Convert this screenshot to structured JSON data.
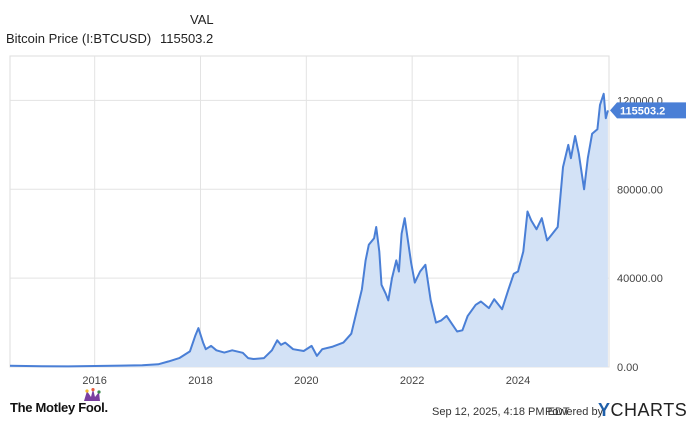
{
  "legend": {
    "column_header": "VAL",
    "series_name": "Bitcoin Price (I:BTCUSD)",
    "series_value": "115503.2"
  },
  "colors": {
    "line": "#4a7fd6",
    "fill": "#d3e2f6",
    "grid": "#e3e3e3",
    "label_bg": "#4a7fd6"
  },
  "chart_data": {
    "type": "area",
    "title": "",
    "xlabel": "",
    "ylabel": "",
    "x_range": [
      2014.4,
      2025.72
    ],
    "ylim": [
      0,
      140000
    ],
    "x_ticks": [
      {
        "value": 2016,
        "label": "2016"
      },
      {
        "value": 2018,
        "label": "2018"
      },
      {
        "value": 2020,
        "label": "2020"
      },
      {
        "value": 2022,
        "label": "2022"
      },
      {
        "value": 2024,
        "label": "2024"
      }
    ],
    "y_ticks": [
      {
        "value": 0,
        "label": "0.00"
      },
      {
        "value": 40000,
        "label": "40000.00"
      },
      {
        "value": 80000,
        "label": "80000.00"
      },
      {
        "value": 120000,
        "label": "120000.0"
      }
    ],
    "grid": true,
    "last_value_label": "115503.2",
    "series": [
      {
        "name": "Bitcoin Price (I:BTCUSD)",
        "points": [
          [
            2014.4,
            600
          ],
          [
            2014.7,
            450
          ],
          [
            2015.0,
            300
          ],
          [
            2015.5,
            250
          ],
          [
            2016.0,
            430
          ],
          [
            2016.5,
            650
          ],
          [
            2016.9,
            800
          ],
          [
            2017.2,
            1200
          ],
          [
            2017.4,
            2500
          ],
          [
            2017.6,
            4000
          ],
          [
            2017.8,
            7000
          ],
          [
            2017.9,
            14000
          ],
          [
            2017.96,
            17500
          ],
          [
            2018.05,
            11000
          ],
          [
            2018.1,
            8000
          ],
          [
            2018.2,
            9500
          ],
          [
            2018.3,
            7500
          ],
          [
            2018.45,
            6500
          ],
          [
            2018.6,
            7500
          ],
          [
            2018.8,
            6400
          ],
          [
            2018.9,
            4000
          ],
          [
            2019.0,
            3600
          ],
          [
            2019.2,
            4000
          ],
          [
            2019.35,
            7500
          ],
          [
            2019.45,
            12000
          ],
          [
            2019.52,
            10000
          ],
          [
            2019.6,
            11000
          ],
          [
            2019.75,
            8000
          ],
          [
            2019.95,
            7200
          ],
          [
            2020.1,
            9500
          ],
          [
            2020.2,
            5000
          ],
          [
            2020.3,
            8000
          ],
          [
            2020.5,
            9200
          ],
          [
            2020.7,
            11000
          ],
          [
            2020.85,
            15000
          ],
          [
            2020.95,
            25000
          ],
          [
            2021.05,
            35000
          ],
          [
            2021.12,
            48000
          ],
          [
            2021.18,
            55000
          ],
          [
            2021.28,
            58000
          ],
          [
            2021.32,
            63000
          ],
          [
            2021.38,
            52000
          ],
          [
            2021.42,
            37000
          ],
          [
            2021.5,
            33000
          ],
          [
            2021.55,
            30000
          ],
          [
            2021.62,
            40000
          ],
          [
            2021.7,
            48000
          ],
          [
            2021.75,
            43000
          ],
          [
            2021.8,
            60000
          ],
          [
            2021.86,
            67000
          ],
          [
            2021.92,
            57000
          ],
          [
            2021.98,
            47000
          ],
          [
            2022.05,
            38000
          ],
          [
            2022.15,
            43000
          ],
          [
            2022.25,
            46000
          ],
          [
            2022.35,
            30000
          ],
          [
            2022.45,
            20000
          ],
          [
            2022.55,
            21000
          ],
          [
            2022.65,
            23000
          ],
          [
            2022.75,
            19500
          ],
          [
            2022.85,
            16000
          ],
          [
            2022.95,
            16500
          ],
          [
            2023.05,
            23000
          ],
          [
            2023.2,
            28000
          ],
          [
            2023.3,
            29500
          ],
          [
            2023.45,
            26500
          ],
          [
            2023.55,
            30500
          ],
          [
            2023.7,
            26000
          ],
          [
            2023.82,
            35000
          ],
          [
            2023.92,
            42000
          ],
          [
            2024.0,
            43000
          ],
          [
            2024.1,
            52000
          ],
          [
            2024.18,
            70000
          ],
          [
            2024.25,
            66000
          ],
          [
            2024.35,
            62000
          ],
          [
            2024.45,
            67000
          ],
          [
            2024.55,
            57000
          ],
          [
            2024.65,
            60000
          ],
          [
            2024.75,
            63000
          ],
          [
            2024.85,
            90000
          ],
          [
            2024.95,
            100000
          ],
          [
            2025.0,
            94000
          ],
          [
            2025.08,
            104000
          ],
          [
            2025.15,
            96000
          ],
          [
            2025.25,
            80000
          ],
          [
            2025.32,
            94000
          ],
          [
            2025.4,
            105000
          ],
          [
            2025.5,
            107000
          ],
          [
            2025.55,
            118000
          ],
          [
            2025.62,
            123000
          ],
          [
            2025.66,
            112000
          ],
          [
            2025.7,
            115500
          ]
        ]
      }
    ]
  },
  "footer": {
    "brand": "The Motley Fool.",
    "timestamp": "Sep 12, 2025, 4:18 PM EDT",
    "powered_by": "Powered by",
    "provider_y": "Y",
    "provider_rest": "CHARTS"
  }
}
